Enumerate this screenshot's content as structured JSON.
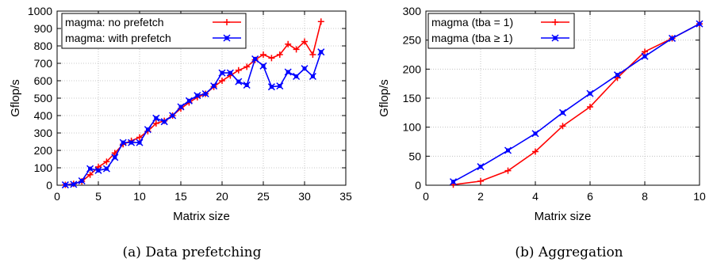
{
  "chart_data": [
    {
      "type": "line",
      "caption": "(a) Data prefetching",
      "xlabel": "Matrix size",
      "ylabel": "Gflop/s",
      "xlim": [
        0,
        35
      ],
      "ylim": [
        0,
        1000
      ],
      "xticks": [
        0,
        5,
        10,
        15,
        20,
        25,
        30,
        35
      ],
      "yticks": [
        0,
        100,
        200,
        300,
        400,
        500,
        600,
        700,
        800,
        900,
        1000
      ],
      "grid": true,
      "legend_position": "top-left",
      "series": [
        {
          "name": "magma: no prefetch",
          "color": "#ff0000",
          "marker": "plus",
          "x": [
            1,
            2,
            3,
            4,
            5,
            6,
            7,
            8,
            9,
            10,
            11,
            12,
            13,
            14,
            15,
            16,
            17,
            18,
            19,
            20,
            21,
            22,
            23,
            24,
            25,
            26,
            27,
            28,
            29,
            30,
            31,
            32
          ],
          "y": [
            2,
            8,
            22,
            60,
            105,
            135,
            185,
            235,
            255,
            275,
            310,
            355,
            370,
            400,
            440,
            475,
            505,
            525,
            565,
            600,
            630,
            660,
            680,
            720,
            750,
            730,
            750,
            810,
            780,
            825,
            750,
            940
          ]
        },
        {
          "name": "magma: with prefetch",
          "color": "#0000ff",
          "marker": "x",
          "x": [
            1,
            2,
            3,
            4,
            5,
            6,
            7,
            8,
            9,
            10,
            11,
            12,
            13,
            14,
            15,
            16,
            17,
            18,
            19,
            20,
            21,
            22,
            23,
            24,
            25,
            26,
            27,
            28,
            29,
            30,
            31,
            32
          ],
          "y": [
            2,
            5,
            25,
            95,
            85,
            95,
            160,
            245,
            245,
            245,
            320,
            385,
            365,
            400,
            450,
            485,
            515,
            525,
            570,
            645,
            645,
            595,
            575,
            725,
            685,
            565,
            570,
            650,
            625,
            670,
            625,
            765
          ]
        }
      ]
    },
    {
      "type": "line",
      "caption": "(b) Aggregation",
      "xlabel": "Matrix size",
      "ylabel": "Gflop/s",
      "xlim": [
        0,
        10
      ],
      "ylim": [
        0,
        300
      ],
      "xticks": [
        0,
        2,
        4,
        6,
        8,
        10
      ],
      "yticks": [
        0,
        50,
        100,
        150,
        200,
        250,
        300
      ],
      "grid": true,
      "legend_position": "top-left",
      "series": [
        {
          "name": "magma (tba = 1)",
          "color": "#ff0000",
          "marker": "plus",
          "x": [
            1,
            2,
            3,
            4,
            5,
            6,
            7,
            8,
            9,
            10
          ],
          "y": [
            1,
            7,
            25,
            58,
            102,
            135,
            185,
            230,
            253,
            278
          ]
        },
        {
          "name": "magma (tba ≥ 1)",
          "color": "#0000ff",
          "marker": "x",
          "x": [
            1,
            2,
            3,
            4,
            5,
            6,
            7,
            8,
            9,
            10
          ],
          "y": [
            6,
            32,
            60,
            89,
            125,
            158,
            190,
            222,
            253,
            278
          ]
        }
      ]
    }
  ]
}
